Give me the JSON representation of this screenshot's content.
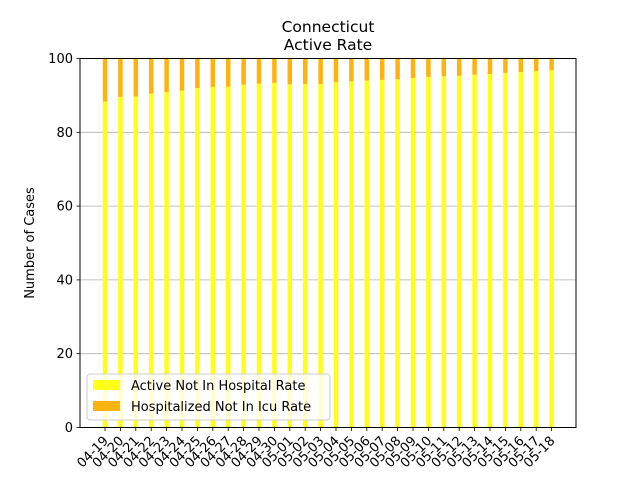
{
  "chart_data": {
    "type": "bar",
    "stacked": true,
    "title": "Connecticut",
    "subtitle": "Active Rate",
    "xlabel": "",
    "ylabel": "Number of Cases",
    "ylim": [
      0,
      100
    ],
    "yticks": [
      0,
      20,
      40,
      60,
      80,
      100
    ],
    "grid": "y",
    "legend_position": "lower-left",
    "categories": [
      "04-19",
      "04-20",
      "04-21",
      "04-22",
      "04-23",
      "04-24",
      "04-25",
      "04-26",
      "04-27",
      "04-28",
      "04-29",
      "04-30",
      "05-01",
      "05-02",
      "05-03",
      "05-04",
      "05-05",
      "05-06",
      "05-07",
      "05-08",
      "05-09",
      "05-10",
      "05-11",
      "05-12",
      "05-13",
      "05-14",
      "05-15",
      "05-16",
      "05-17",
      "05-18"
    ],
    "series": [
      {
        "name": "Active Not In Hospital Rate",
        "color": "#ffff1a",
        "values": [
          88.3,
          89.6,
          89.7,
          90.5,
          90.9,
          91.3,
          92.0,
          92.3,
          92.4,
          92.9,
          93.2,
          93.4,
          93.0,
          93.1,
          93.1,
          93.6,
          93.8,
          94.0,
          94.2,
          94.4,
          94.7,
          95.0,
          95.2,
          95.3,
          95.6,
          95.8,
          96.1,
          96.3,
          96.6,
          96.8
        ]
      },
      {
        "name": "Hospitalized Not In Icu Rate",
        "color": "#ffb30f",
        "values": [
          11.7,
          10.4,
          10.3,
          9.5,
          9.1,
          8.7,
          8.0,
          7.7,
          7.6,
          7.1,
          6.8,
          6.6,
          7.0,
          6.9,
          6.9,
          6.4,
          6.2,
          6.0,
          5.8,
          5.6,
          5.3,
          5.0,
          4.8,
          4.7,
          4.4,
          4.2,
          3.9,
          3.7,
          3.4,
          3.2
        ]
      }
    ]
  }
}
